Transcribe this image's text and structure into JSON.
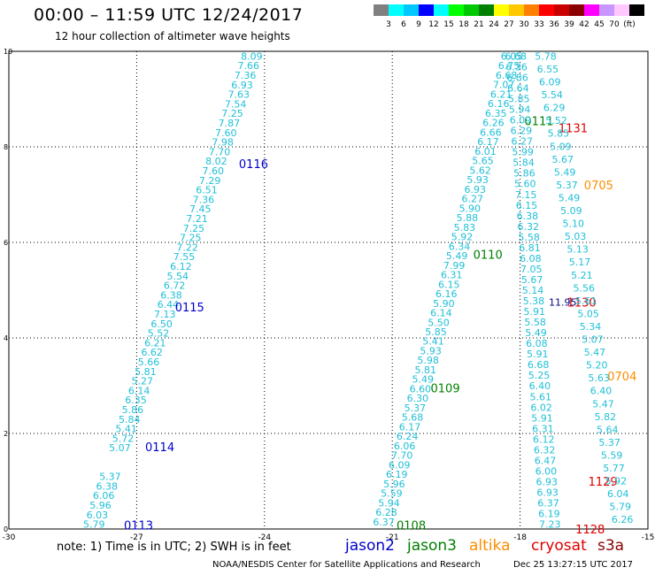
{
  "header": {
    "title": "00:00 – 11:59 UTC 12/24/2017",
    "subtitle": "12 hour collection of altimeter wave heights"
  },
  "colorbar": {
    "colors": [
      "#808080",
      "#00ffff",
      "#00c8ff",
      "#0000ff",
      "#00ffff",
      "#00ff00",
      "#00c800",
      "#008000",
      "#ffff00",
      "#ffc800",
      "#ff8000",
      "#ff0000",
      "#c80000",
      "#8b0000",
      "#ff00ff",
      "#c896ff",
      "#ffc8ff",
      "#000000"
    ],
    "labels": [
      "3",
      "6",
      "9",
      "12",
      "15",
      "18",
      "21",
      "24",
      "27",
      "30",
      "33",
      "36",
      "39",
      "42",
      "45",
      "70",
      "(ft)"
    ]
  },
  "chart_data": {
    "type": "scatter",
    "xlim": [
      -30,
      -15
    ],
    "ylim": [
      0,
      10
    ],
    "xticks": [
      "-30",
      "-27",
      "-24",
      "-21",
      "-18",
      "-15"
    ],
    "yticks": [
      "0",
      "2",
      "4",
      "6",
      "8",
      "10"
    ],
    "grid": true,
    "tracks": [
      {
        "label": "0113",
        "satellite": "jason2",
        "label_color": "#0000cc",
        "label_at": [
          -27.3,
          0.08
        ],
        "from": [
          -28.0,
          0.1
        ],
        "to": [
          -24.3,
          9.9
        ],
        "values": [
          "5.79",
          "6.03",
          "5.96",
          "6.06",
          "6.38",
          "5.37",
          "",
          "",
          "5.07",
          "5.72",
          "5.41",
          "5.84",
          "5.86",
          "6.35",
          "6.14",
          "5.27",
          "5.81",
          "5.66",
          "6.62",
          "6.21",
          "5.52",
          "6.50",
          "7.13",
          "6.44",
          "6.38",
          "6.72",
          "5.54",
          "6.12",
          "7.55",
          "7.22",
          "7.25",
          "7.25",
          "7.21",
          "7.45",
          "7.36",
          "6.51",
          "7.29",
          "7.60",
          "8.02",
          "7.70",
          "7.98",
          "7.60",
          "7.87",
          "7.25",
          "7.54",
          "7.63",
          "6.93",
          "7.36",
          "7.66",
          "8.09"
        ]
      },
      {
        "label": "0114",
        "satellite": "jason2",
        "label_color": "#0000cc",
        "label_at": [
          -26.8,
          1.72
        ]
      },
      {
        "label": "0115",
        "satellite": "jason2",
        "label_color": "#0000cc",
        "label_at": [
          -26.1,
          4.65
        ]
      },
      {
        "label": "0116",
        "satellite": "jason2",
        "label_color": "#0000cc",
        "label_at": [
          -24.6,
          7.65
        ]
      },
      {
        "label": "0108",
        "satellite": "jason3",
        "label_color": "#008000",
        "label_at": [
          -20.9,
          0.08
        ],
        "from": [
          -21.2,
          0.15
        ],
        "to": [
          -18.2,
          9.9
        ],
        "values": [
          "6.37",
          "6.28",
          "5.94",
          "5.59",
          "5.96",
          "6.19",
          "6.09",
          "7.70",
          "6.06",
          "6.24",
          "6.17",
          "5.68",
          "5.37",
          "6.30",
          "6.60",
          "5.49",
          "5.81",
          "5.98",
          "5.93",
          "5.41",
          "5.85",
          "5.50",
          "6.14",
          "5.90",
          "6.16",
          "6.15",
          "6.31",
          "7.99",
          "5.49",
          "6.34",
          "5.92",
          "5.83",
          "5.88",
          "5.90",
          "6.27",
          "6.93",
          "5.93",
          "5.62",
          "5.65",
          "6.01",
          "6.17",
          "6.66",
          "6.26",
          "6.35",
          "6.16",
          "6.21",
          "7.07",
          "6.68",
          "6.75",
          "6.05"
        ]
      },
      {
        "label": "0109",
        "satellite": "jason3",
        "label_color": "#008000",
        "label_at": [
          -20.1,
          2.95
        ]
      },
      {
        "label": "0110",
        "satellite": "jason3",
        "label_color": "#008000",
        "label_at": [
          -19.1,
          5.75
        ]
      },
      {
        "label": "0111",
        "satellite": "jason3",
        "label_color": "#008000",
        "label_at": [
          -17.9,
          8.55
        ]
      },
      {
        "label": "0704",
        "satellite": "altika",
        "label_color": "#ff8c00",
        "label_at": [
          -15.95,
          3.2
        ]
      },
      {
        "label": "0705",
        "satellite": "altika",
        "label_color": "#ff8c00",
        "label_at": [
          -16.5,
          7.2
        ]
      },
      {
        "label": "1128",
        "satellite": "cryosat",
        "label_color": "#e00000",
        "label_at": [
          -16.7,
          0.0
        ]
      },
      {
        "label": "1129",
        "satellite": "cryosat",
        "label_color": "#e00000",
        "label_at": [
          -16.4,
          1.0
        ]
      },
      {
        "label": "1130",
        "satellite": "cryosat",
        "label_color": "#e00000",
        "label_at": [
          -16.9,
          4.75
        ]
      },
      {
        "label": "1131",
        "satellite": "cryosat",
        "label_color": "#e00000",
        "label_at": [
          -17.1,
          8.4
        ]
      },
      {
        "label": "",
        "satellite": "",
        "label_color": "#00d0e0",
        "label_at": [
          -17.3,
          0.1
        ],
        "from": [
          -17.3,
          0.1
        ],
        "to": [
          -18.1,
          9.9
        ],
        "values": [
          "7.23",
          "6.19",
          "6.37",
          "6.93",
          "6.93",
          "6.00",
          "6.47",
          "6.32",
          "6.12",
          "6.31",
          "5.91",
          "6.02",
          "5.61",
          "6.40",
          "5.25",
          "6.68",
          "5.91",
          "6.08",
          "5.49",
          "5.58",
          "5.91",
          "5.38",
          "5.14",
          "5.67",
          "7.05",
          "6.08",
          "6.81",
          "5.58",
          "6.32",
          "6.38",
          "6.15",
          "7.15",
          "5.60",
          "5.86",
          "5.84",
          "5.99",
          "6.27",
          "6.29",
          "6.09",
          "5.94",
          "5.85",
          "6.64",
          "6.86",
          "6.36",
          "6.68"
        ]
      },
      {
        "label": "",
        "satellite": "",
        "label_color": "#00d0e0",
        "label_at": [
          -15.6,
          0.1
        ],
        "from": [
          -15.6,
          0.2
        ],
        "to": [
          -17.4,
          9.9
        ],
        "values": [
          "6.26",
          "5.79",
          "6.04",
          "5.92",
          "5.77",
          "5.59",
          "5.37",
          "5.64",
          "5.82",
          "5.47",
          "6.40",
          "5.63",
          "5.20",
          "5.47",
          "5.07",
          "5.34",
          "5.05",
          "5.61",
          "5.56",
          "5.21",
          "5.17",
          "5.13",
          "5.03",
          "5.10",
          "5.09",
          "5.49",
          "5.37",
          "5.49",
          "5.67",
          "5.09",
          "5.85",
          "5.52",
          "6.29",
          "5.54",
          "6.09",
          "6.55",
          "5.78"
        ]
      }
    ],
    "point_labels": [
      {
        "text": "11.95",
        "color": "#000080",
        "at": [
          -17.0,
          4.75
        ]
      }
    ]
  },
  "footer": {
    "note": "note:  1) Time is in UTC;  2) SWH is in feet",
    "legend": [
      {
        "name": "jason2",
        "color": "#0000cc"
      },
      {
        "name": "jason3",
        "color": "#008000"
      },
      {
        "name": "altika",
        "color": "#ff8c00"
      },
      {
        "name": "cryosat",
        "color": "#e00000"
      },
      {
        "name": "s3a",
        "color": "#8b0000"
      }
    ],
    "credit": "NOAA/NESDIS Center for Satellite Applications and Research",
    "timestamp": "Dec 25 13:27:15 UTC 2017"
  }
}
